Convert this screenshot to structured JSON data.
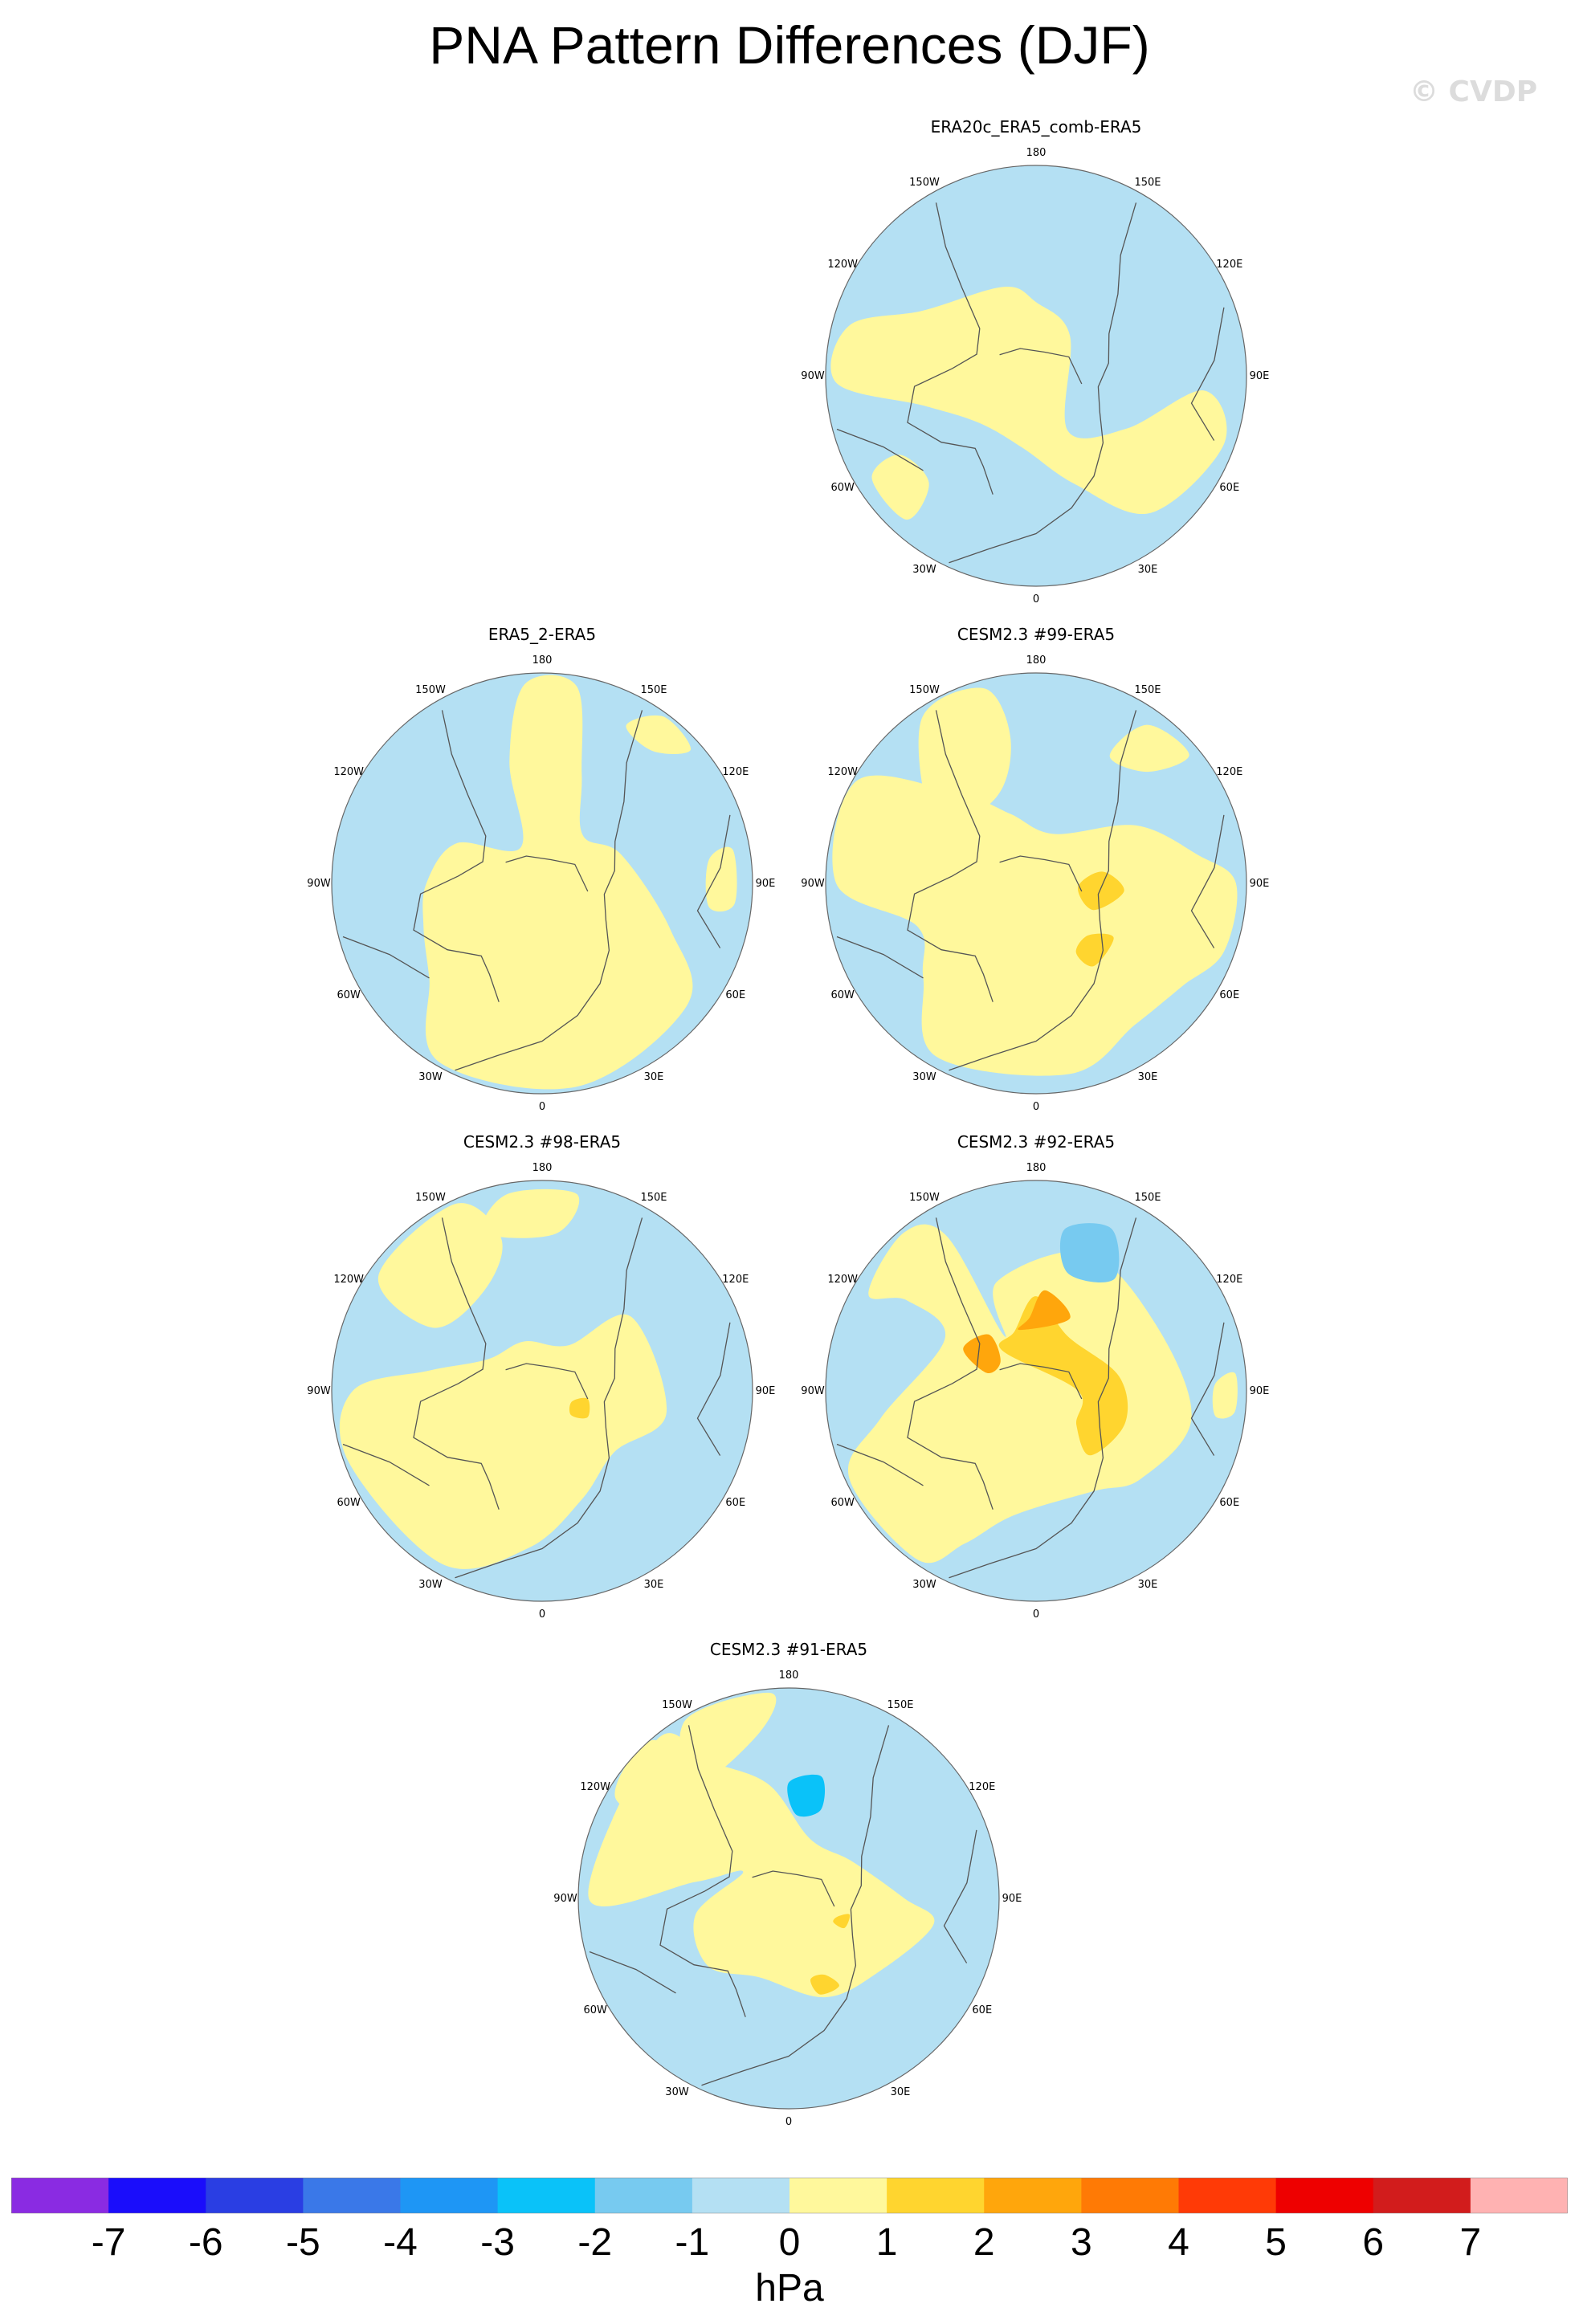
{
  "title": "PNA Pattern Differences (DJF)",
  "watermark": "© CVDP",
  "units": "hPa",
  "colorbar": {
    "labels": [
      "-7",
      "-6",
      "-5",
      "-4",
      "-3",
      "-2",
      "-1",
      "0",
      "1",
      "2",
      "3",
      "4",
      "5",
      "6",
      "7"
    ],
    "colors": [
      "#8a2be2",
      "#1a0dfb",
      "#2a3ee3",
      "#3a78e8",
      "#1e96f5",
      "#0ac2f9",
      "#77caf0",
      "#b4e0f3",
      "#fff89c",
      "#ffd52f",
      "#ffa60c",
      "#ff7a05",
      "#ff3a06",
      "#ee0000",
      "#d21c1c",
      "#ffb2b2"
    ]
  },
  "panels": [
    {
      "title": "ERA20c_ERA5_comb-ERA5"
    },
    {
      "title": "ERA5_2-ERA5"
    },
    {
      "title": "CESM2.3 #99-ERA5"
    },
    {
      "title": "CESM2.3 #98-ERA5"
    },
    {
      "title": "CESM2.3 #92-ERA5"
    },
    {
      "title": "CESM2.3 #91-ERA5"
    }
  ],
  "lon_labels": [
    "180",
    "150E",
    "120E",
    "90E",
    "60E",
    "30E",
    "0",
    "30W",
    "60W",
    "90W",
    "120W",
    "150W"
  ]
}
